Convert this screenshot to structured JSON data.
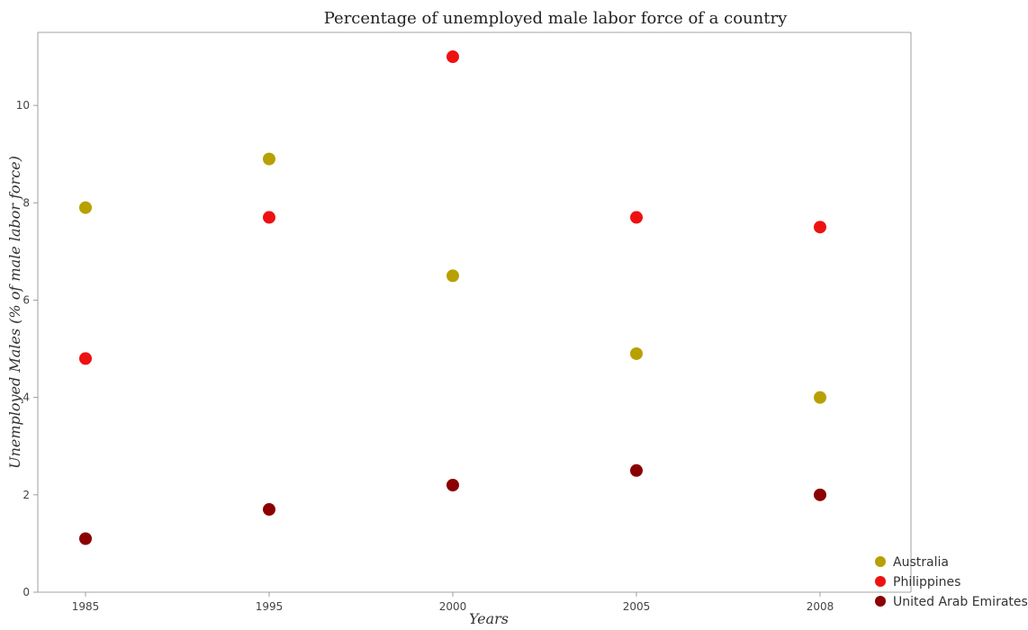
{
  "chart_data": {
    "type": "scatter",
    "title": "Percentage of unemployed male labor force of a country",
    "xlabel": "Years",
    "ylabel": "Unemployed Males (% of male labor force)",
    "categories": [
      "1985",
      "1995",
      "2000",
      "2005",
      "2008"
    ],
    "y_ticks": [
      "0",
      "2",
      "4",
      "6",
      "8",
      "10"
    ],
    "ylim": [
      0,
      11.5
    ],
    "grid": false,
    "legend_position": "bottom-right",
    "series": [
      {
        "name": "Australia",
        "color": "#b8a000",
        "values": [
          7.9,
          8.9,
          6.5,
          4.9,
          4.0
        ]
      },
      {
        "name": "Philippines",
        "color": "#ee1111",
        "values": [
          4.8,
          7.7,
          11.0,
          7.7,
          7.5
        ]
      },
      {
        "name": "United Arab Emirates",
        "color": "#8b0000",
        "values": [
          1.1,
          1.7,
          2.2,
          2.5,
          2.0
        ]
      }
    ]
  }
}
